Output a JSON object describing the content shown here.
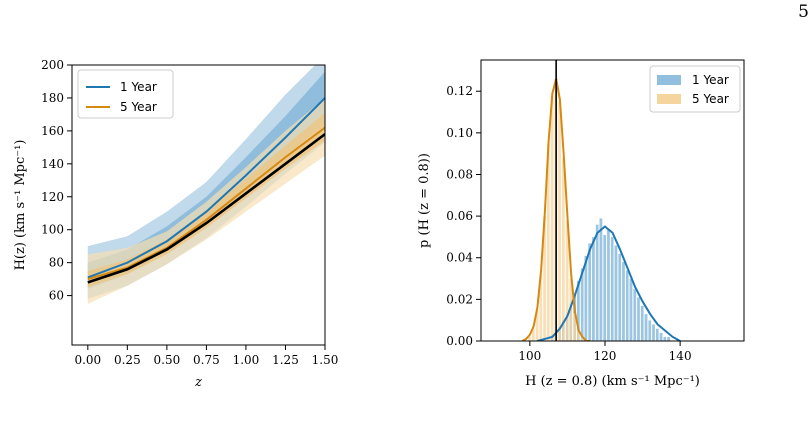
{
  "page_number": "5",
  "colors": {
    "one_year": "#1f77b4",
    "one_year_band_inner": "#7fb3d5",
    "one_year_band_outer": "#b9d5e9",
    "five_year": "#d68910",
    "five_year_band_inner": "#efc37a",
    "five_year_band_outer": "#f6dfb3",
    "truth": "#000000",
    "hist_one_year": "#91bfdf",
    "hist_five_year": "#f5d49e"
  },
  "chart_data": [
    {
      "type": "line",
      "panel": "left",
      "xlabel": "z",
      "ylabel": "H(z) (km s⁻¹ Mpc⁻¹)",
      "xlim": [
        -0.1,
        1.5
      ],
      "ylim": [
        30,
        200
      ],
      "xticks": [
        "0.00",
        "0.25",
        "0.50",
        "0.75",
        "1.00",
        "1.25",
        "1.50"
      ],
      "yticks": [
        "60",
        "80",
        "100",
        "120",
        "140",
        "160",
        "180",
        "200"
      ],
      "legend": {
        "position": "top-left",
        "entries": [
          "1 Year",
          "5 Year"
        ]
      },
      "x": [
        0,
        0.25,
        0.5,
        0.75,
        1.0,
        1.25,
        1.5
      ],
      "series": [
        {
          "name": "1 Year",
          "values": [
            71,
            80,
            93,
            111,
            133,
            156,
            180
          ],
          "band_1sigma_low": [
            64,
            73,
            86,
            103,
            123,
            144,
            166
          ],
          "band_1sigma_high": [
            80,
            88,
            102,
            120,
            144,
            169,
            196
          ],
          "band_2sigma_low": [
            58,
            66,
            79,
            95,
            114,
            134,
            153
          ],
          "band_2sigma_high": [
            90,
            96,
            111,
            129,
            155,
            182,
            206
          ]
        },
        {
          "name": "5 Year",
          "values": [
            70,
            77,
            89,
            106,
            125,
            144,
            162
          ],
          "band_1sigma_low": [
            65,
            73,
            85,
            101,
            119,
            137,
            154
          ],
          "band_1sigma_high": [
            75,
            82,
            94,
            111,
            131,
            151,
            171
          ],
          "band_2sigma_low": [
            55,
            66,
            79,
            94,
            111,
            128,
            145
          ],
          "band_2sigma_high": [
            85,
            89,
            99,
            117,
            138,
            160,
            180
          ]
        },
        {
          "values": [
            68,
            76,
            88,
            104,
            122,
            140,
            158
          ]
        }
      ]
    },
    {
      "type": "bar",
      "panel": "right",
      "xlabel": "H (z = 0.8) (km s⁻¹ Mpc⁻¹)",
      "ylabel": "p (H (z = 0.8))",
      "xlim": [
        87,
        157
      ],
      "ylim": [
        0,
        0.135
      ],
      "xticks": [
        "100",
        "120",
        "140"
      ],
      "yticks": [
        "0.00",
        "0.02",
        "0.04",
        "0.06",
        "0.08",
        "0.10",
        "0.12"
      ],
      "legend": {
        "position": "top-right",
        "entries": [
          "1 Year",
          "5 Year"
        ]
      },
      "truth_line": 107,
      "histograms": [
        {
          "name": "1 Year",
          "bin_centers": [
            106,
            107,
            108,
            109,
            110,
            111,
            112,
            113,
            114,
            115,
            116,
            117,
            118,
            119,
            120,
            121,
            122,
            123,
            124,
            125,
            126,
            127,
            128,
            129,
            130,
            131,
            132,
            133,
            134,
            135,
            136,
            137
          ],
          "values": [
            0.003,
            0.005,
            0.007,
            0.01,
            0.013,
            0.018,
            0.023,
            0.029,
            0.035,
            0.041,
            0.047,
            0.05,
            0.056,
            0.059,
            0.051,
            0.054,
            0.05,
            0.046,
            0.042,
            0.038,
            0.034,
            0.03,
            0.025,
            0.021,
            0.017,
            0.013,
            0.01,
            0.008,
            0.006,
            0.004,
            0.002,
            0.002
          ]
        },
        {
          "name": "5 Year",
          "bin_centers": [
            100,
            101,
            102,
            103,
            104,
            105,
            106,
            107,
            108,
            109,
            110,
            111,
            112,
            113,
            114
          ],
          "values": [
            0.002,
            0.006,
            0.015,
            0.032,
            0.06,
            0.095,
            0.118,
            0.126,
            0.115,
            0.088,
            0.058,
            0.03,
            0.013,
            0.005,
            0.001
          ]
        }
      ],
      "curves": [
        {
          "name": "1 Year",
          "x": [
            102,
            104,
            106,
            108,
            110,
            112,
            114,
            116,
            118,
            120,
            122,
            124,
            126,
            128,
            130,
            132,
            134,
            136,
            138,
            140
          ],
          "values": [
            0.0,
            0.001,
            0.002,
            0.006,
            0.012,
            0.022,
            0.033,
            0.044,
            0.052,
            0.055,
            0.052,
            0.044,
            0.035,
            0.026,
            0.019,
            0.013,
            0.008,
            0.005,
            0.002,
            0.0
          ]
        },
        {
          "name": "5 Year",
          "x": [
            98,
            99,
            100,
            101,
            102,
            103,
            104,
            105,
            106,
            107,
            108,
            109,
            110,
            111,
            112,
            113,
            114,
            115,
            116
          ],
          "values": [
            0.0,
            0.001,
            0.003,
            0.007,
            0.016,
            0.034,
            0.062,
            0.096,
            0.119,
            0.126,
            0.116,
            0.09,
            0.06,
            0.032,
            0.014,
            0.005,
            0.002,
            0.0,
            0.0
          ]
        }
      ]
    }
  ]
}
